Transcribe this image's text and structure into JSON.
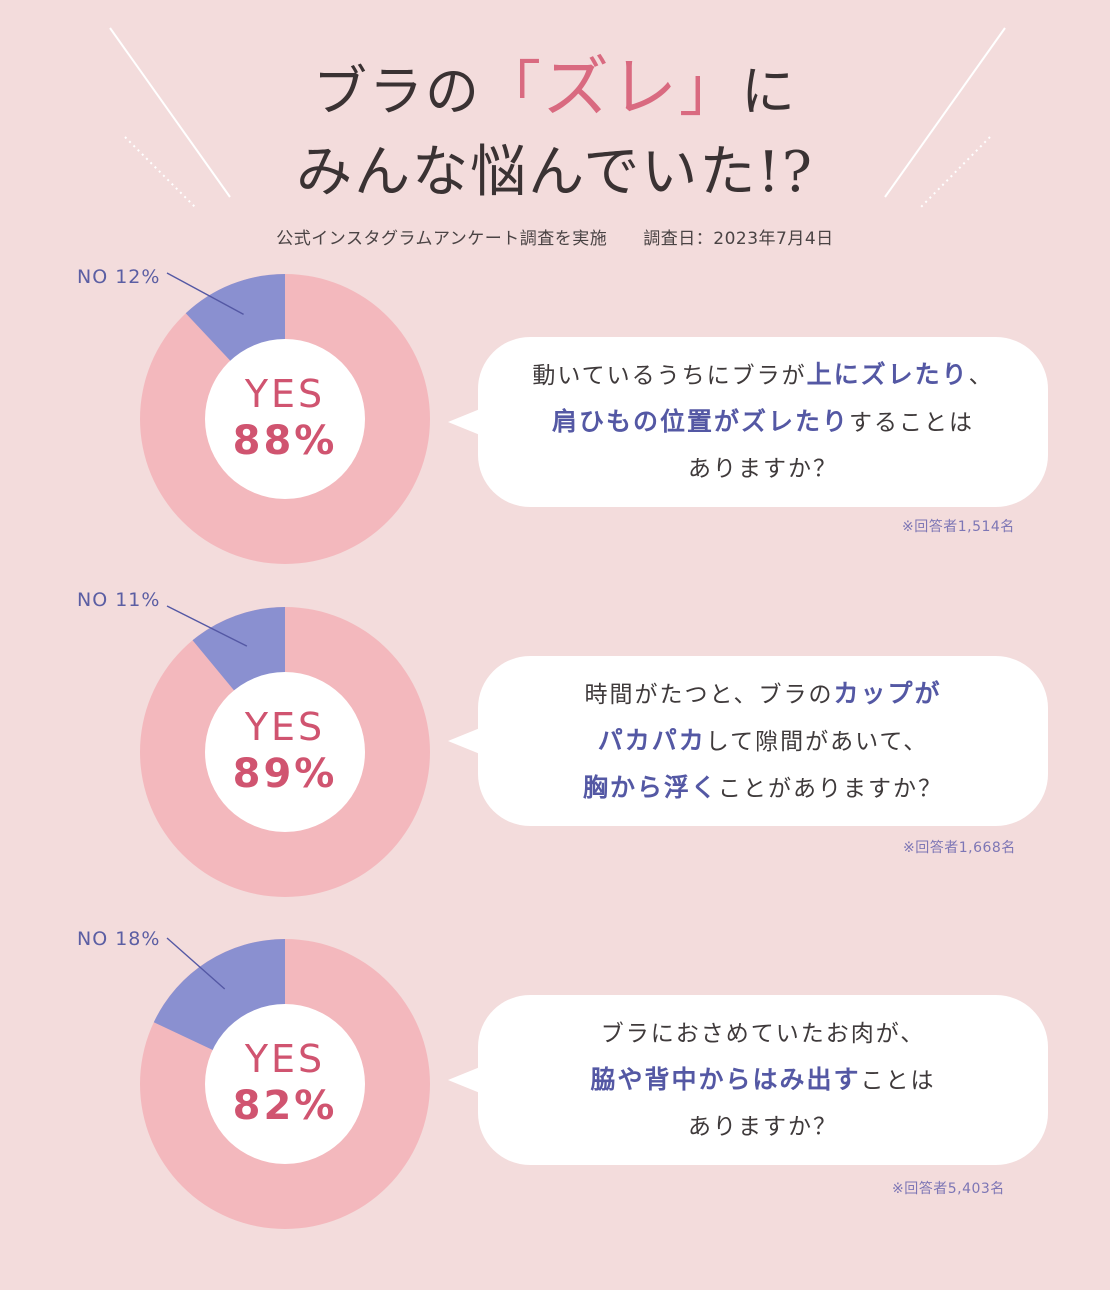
{
  "header": {
    "title_line1_pre": "ブラの",
    "title_bracket_open": "「",
    "title_highlight": "ズレ",
    "title_bracket_close": "」",
    "title_line1_post": "に",
    "title_line2": "みんな悩んでいた!?",
    "survey_method": "公式インスタグラムアンケート調査を実施",
    "survey_date": "調査日：2023年7月4日"
  },
  "colors": {
    "background": "#f3dcdc",
    "yes_slice": "#f3b8bd",
    "no_slice": "#8a90d0",
    "accent_pink": "#d05470",
    "accent_blue": "#5458a4"
  },
  "chart_data": [
    {
      "type": "pie",
      "categories": [
        "YES",
        "NO"
      ],
      "values": [
        88,
        12
      ],
      "yes_label": "YES",
      "yes_pct": "88%",
      "no_label": "NO 12%",
      "respondents": "※回答者1,514名",
      "question": [
        [
          {
            "t": "動いているうちにブラが"
          },
          {
            "t": "上にズレたり",
            "b": true
          },
          {
            "t": "、"
          }
        ],
        [
          {
            "t": "肩ひもの位置がズレたり",
            "b": true
          },
          {
            "t": "することは"
          }
        ],
        [
          {
            "t": "ありますか？"
          }
        ]
      ]
    },
    {
      "type": "pie",
      "categories": [
        "YES",
        "NO"
      ],
      "values": [
        89,
        11
      ],
      "yes_label": "YES",
      "yes_pct": "89%",
      "no_label": "NO 11%",
      "respondents": "※回答者1,668名",
      "question": [
        [
          {
            "t": "時間がたつと、ブラの"
          },
          {
            "t": "カップが",
            "b": true
          }
        ],
        [
          {
            "t": "パカパカ",
            "b": true
          },
          {
            "t": "して隙間があいて、"
          }
        ],
        [
          {
            "t": "胸から浮く",
            "b": true
          },
          {
            "t": "ことがありますか？"
          }
        ]
      ]
    },
    {
      "type": "pie",
      "categories": [
        "YES",
        "NO"
      ],
      "values": [
        82,
        18
      ],
      "yes_label": "YES",
      "yes_pct": "82%",
      "no_label": "NO 18%",
      "respondents": "※回答者5,403名",
      "question": [
        [
          {
            "t": "ブラにおさめていたお肉が、"
          }
        ],
        [
          {
            "t": "脇や背中からはみ出す",
            "b": true
          },
          {
            "t": "ことは"
          }
        ],
        [
          {
            "t": "ありますか？"
          }
        ]
      ]
    }
  ]
}
